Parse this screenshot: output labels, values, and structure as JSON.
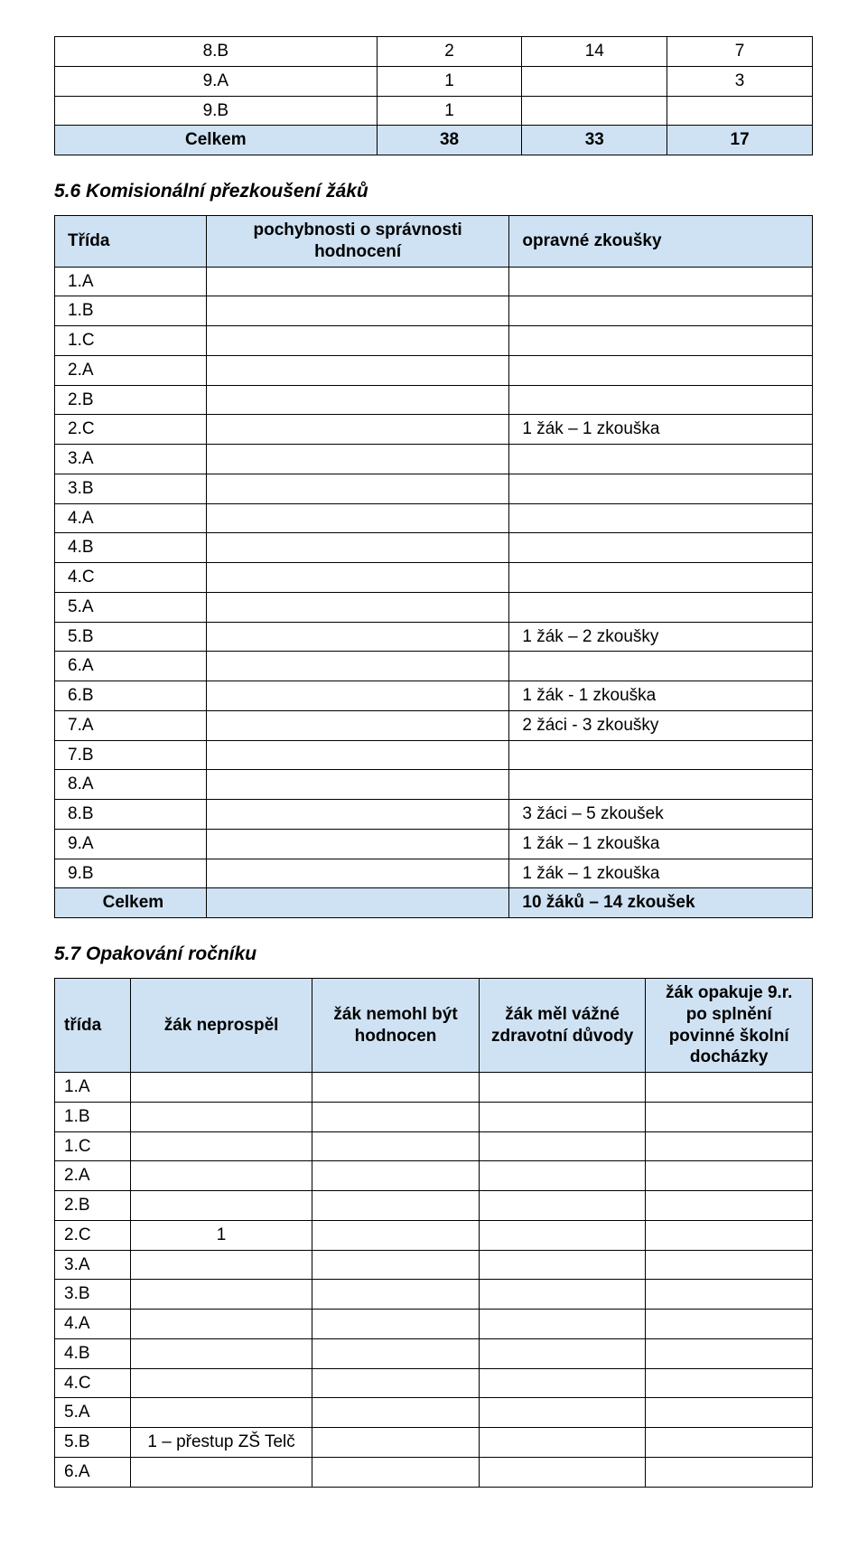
{
  "colors": {
    "header_bg": "#cfe2f3",
    "border": "#000000",
    "text": "#000000",
    "page_bg": "#ffffff"
  },
  "table1": {
    "rows": [
      {
        "c1": "8.B",
        "c2": "2",
        "c3": "14",
        "c4": "7"
      },
      {
        "c1": "9.A",
        "c2": "1",
        "c3": "",
        "c4": "3"
      },
      {
        "c1": "9.B",
        "c2": "1",
        "c3": "",
        "c4": ""
      }
    ],
    "total": {
      "label": "Celkem",
      "c2": "38",
      "c3": "33",
      "c4": "17"
    }
  },
  "section56": {
    "title": "5.6 Komisionální přezkoušení žáků",
    "headers": {
      "h1": "Třída",
      "h2": "pochybnosti o správnosti hodnocení",
      "h3": "opravné zkoušky"
    },
    "rows": [
      {
        "trida": "1.A",
        "p": "",
        "o": ""
      },
      {
        "trida": "1.B",
        "p": "",
        "o": ""
      },
      {
        "trida": "1.C",
        "p": "",
        "o": ""
      },
      {
        "trida": "2.A",
        "p": "",
        "o": ""
      },
      {
        "trida": "2.B",
        "p": "",
        "o": ""
      },
      {
        "trida": "2.C",
        "p": "",
        "o": "1 žák – 1 zkouška"
      },
      {
        "trida": "3.A",
        "p": "",
        "o": ""
      },
      {
        "trida": "3.B",
        "p": "",
        "o": ""
      },
      {
        "trida": "4.A",
        "p": "",
        "o": ""
      },
      {
        "trida": "4.B",
        "p": "",
        "o": ""
      },
      {
        "trida": "4.C",
        "p": "",
        "o": ""
      },
      {
        "trida": "5.A",
        "p": "",
        "o": ""
      },
      {
        "trida": "5.B",
        "p": "",
        "o": "1 žák – 2 zkoušky"
      },
      {
        "trida": "6.A",
        "p": "",
        "o": ""
      },
      {
        "trida": "6.B",
        "p": "",
        "o": "1 žák - 1 zkouška"
      },
      {
        "trida": "7.A",
        "p": "",
        "o": "2 žáci - 3 zkoušky"
      },
      {
        "trida": "7.B",
        "p": "",
        "o": ""
      },
      {
        "trida": "8.A",
        "p": "",
        "o": ""
      },
      {
        "trida": "8.B",
        "p": "",
        "o": "3 žáci – 5 zkoušek"
      },
      {
        "trida": "9.A",
        "p": "",
        "o": "1 žák – 1 zkouška"
      },
      {
        "trida": "9.B",
        "p": "",
        "o": "1 žák – 1 zkouška"
      }
    ],
    "total": {
      "label": "Celkem",
      "p": "",
      "o": "10 žáků – 14 zkoušek"
    }
  },
  "section57": {
    "title": "5.7 Opakování ročníku",
    "headers": {
      "h1": "třída",
      "h2": "žák neprospěl",
      "h3": "žák nemohl být hodnocen",
      "h4": "žák měl vážné zdravotní důvody",
      "h5": "žák opakuje 9.r. po splnění povinné školní docházky"
    },
    "rows": [
      {
        "t": "1.A",
        "c2": "",
        "c3": "",
        "c4": "",
        "c5": ""
      },
      {
        "t": "1.B",
        "c2": "",
        "c3": "",
        "c4": "",
        "c5": ""
      },
      {
        "t": "1.C",
        "c2": "",
        "c3": "",
        "c4": "",
        "c5": ""
      },
      {
        "t": "2.A",
        "c2": "",
        "c3": "",
        "c4": "",
        "c5": ""
      },
      {
        "t": "2.B",
        "c2": "",
        "c3": "",
        "c4": "",
        "c5": ""
      },
      {
        "t": "2.C",
        "c2": "1",
        "c3": "",
        "c4": "",
        "c5": ""
      },
      {
        "t": "3.A",
        "c2": "",
        "c3": "",
        "c4": "",
        "c5": ""
      },
      {
        "t": "3.B",
        "c2": "",
        "c3": "",
        "c4": "",
        "c5": ""
      },
      {
        "t": "4.A",
        "c2": "",
        "c3": "",
        "c4": "",
        "c5": ""
      },
      {
        "t": "4.B",
        "c2": "",
        "c3": "",
        "c4": "",
        "c5": ""
      },
      {
        "t": "4.C",
        "c2": "",
        "c3": "",
        "c4": "",
        "c5": ""
      },
      {
        "t": "5.A",
        "c2": "",
        "c3": "",
        "c4": "",
        "c5": ""
      },
      {
        "t": "5.B",
        "c2": "1 – přestup ZŠ Telč",
        "c3": "",
        "c4": "",
        "c5": ""
      },
      {
        "t": "6.A",
        "c2": "",
        "c3": "",
        "c4": "",
        "c5": ""
      }
    ]
  }
}
